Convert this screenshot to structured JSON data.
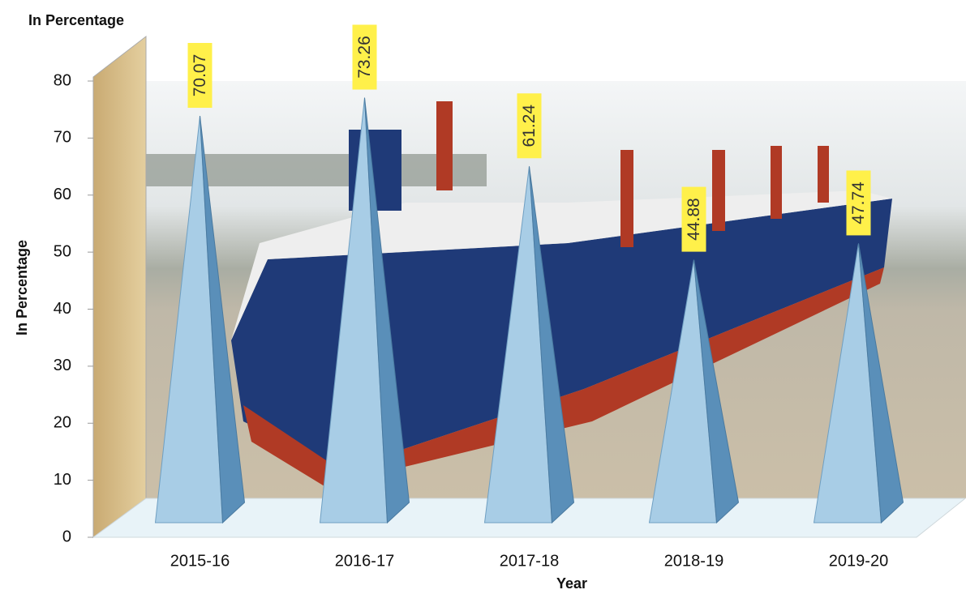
{
  "chart_data": {
    "type": "pyramid",
    "unit_label": "In Percentage",
    "y_label": "In Percentage",
    "x_label": "Year",
    "categories": [
      "2015-16",
      "2016-17",
      "2017-18",
      "2018-19",
      "2019-20"
    ],
    "values": [
      70.07,
      73.26,
      61.24,
      44.88,
      47.74
    ],
    "ylim": [
      0,
      80
    ],
    "yticks": [
      0,
      10,
      20,
      30,
      40,
      50,
      60,
      70,
      80
    ],
    "color": "#a8cde6",
    "label_color": "#fff04a"
  }
}
